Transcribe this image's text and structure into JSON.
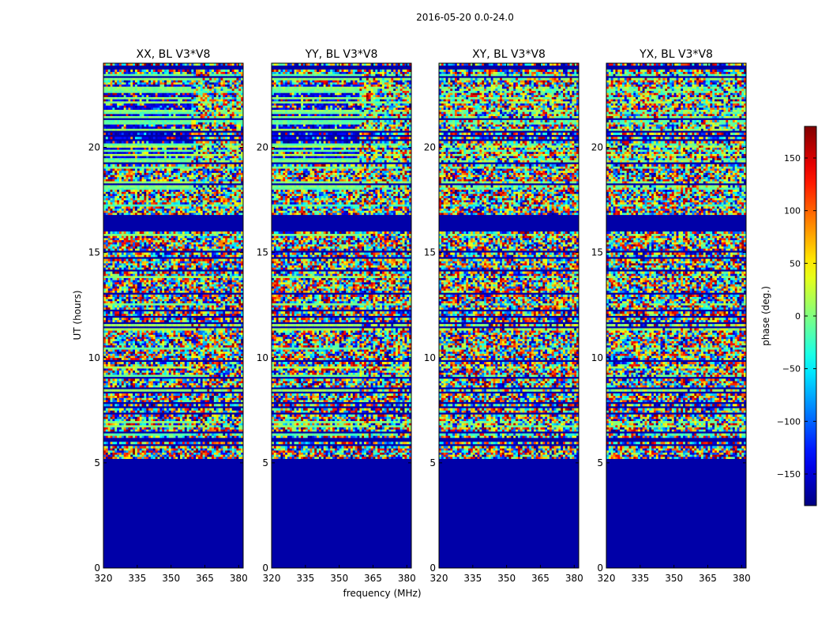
{
  "chart_data": {
    "type": "heatmap",
    "suptitle": "2016-05-20 0.0-24.0",
    "xlabel": "frequency (MHz)",
    "ylabel": "UT (hours)",
    "xlim": [
      320,
      382
    ],
    "ylim": [
      0,
      24
    ],
    "xticks": [
      320,
      335,
      350,
      365,
      380
    ],
    "yticks": [
      0,
      5,
      10,
      15,
      20
    ],
    "panels": [
      {
        "title": "XX, BL V3*V8",
        "corr": "parallel",
        "rfi_band_start": 359
      },
      {
        "title": "YY, BL V3*V8",
        "corr": "parallel",
        "rfi_band_start": 359
      },
      {
        "title": "XY, BL V3*V8",
        "corr": "cross"
      },
      {
        "title": "YX, BL V3*V8",
        "corr": "cross"
      }
    ],
    "flagged_ranges_hours": [
      [
        0,
        5.2
      ],
      [
        16.0,
        16.75
      ]
    ],
    "colorbar": {
      "label": "phase (deg.)",
      "range": [
        -180,
        180
      ],
      "ticks": [
        -150,
        -100,
        -50,
        0,
        50,
        100,
        150
      ],
      "colormap": "jet"
    }
  }
}
